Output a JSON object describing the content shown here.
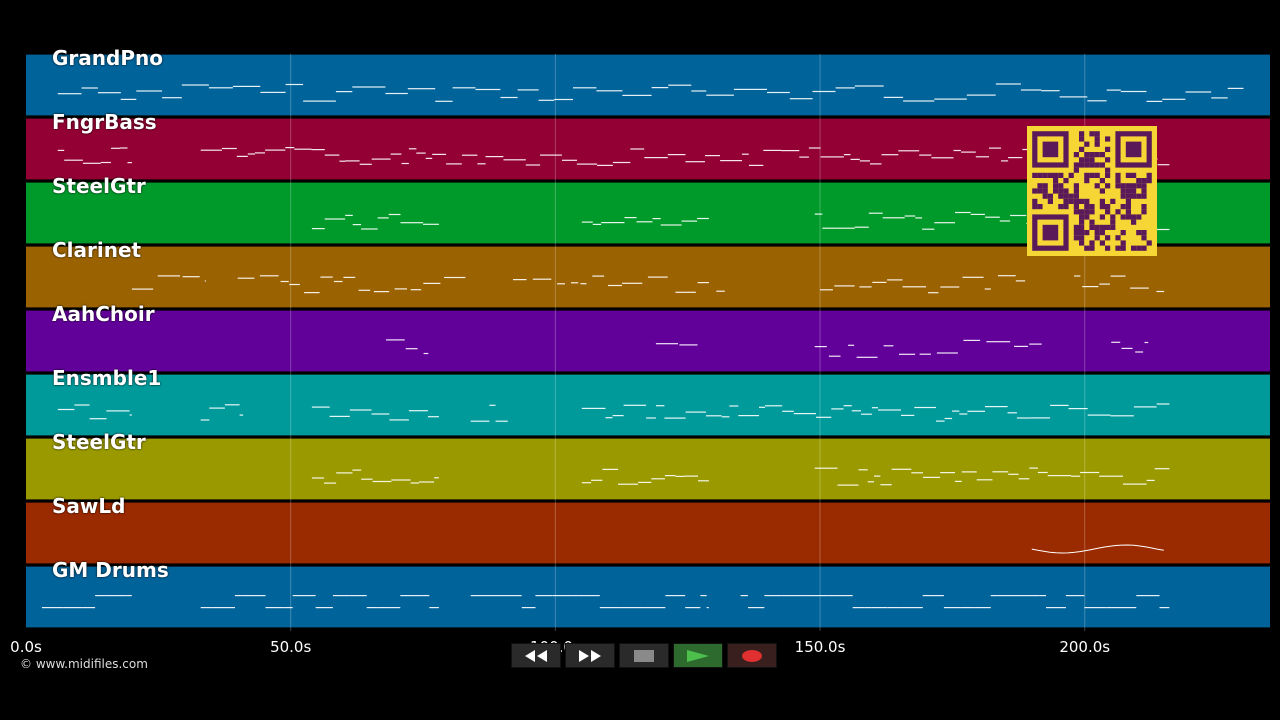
{
  "tracks": [
    {
      "name": "GrandPno",
      "color": "#00639a"
    },
    {
      "name": "FngrBass",
      "color": "#930033"
    },
    {
      "name": "SteelGtr",
      "color": "#009a2a"
    },
    {
      "name": "Clarinet",
      "color": "#9a6200"
    },
    {
      "name": "AahChoir",
      "color": "#62009a"
    },
    {
      "name": "Ensmble1",
      "color": "#009a9a"
    },
    {
      "name": "SteelGtr",
      "color": "#9a9a00"
    },
    {
      "name": "SawLd",
      "color": "#9a2a00"
    },
    {
      "name": "GM Drums",
      "color": "#00639a"
    }
  ],
  "timeline": {
    "ticks": [
      "0.0s",
      "50.0s",
      "100.0s",
      "150.0s",
      "200.0s"
    ],
    "tick_values": [
      0,
      50,
      100,
      150,
      200
    ],
    "max_seconds": 235
  },
  "copyright": "© www.midifiles.com",
  "controls": {
    "rewind_icon": "rewind-icon",
    "fast_forward_icon": "fast-forward-icon",
    "stop_icon": "stop-icon",
    "play_icon": "play-icon",
    "record_icon": "record-icon",
    "play_color": "#4cbf4c",
    "record_color": "#e03030"
  },
  "qr": {
    "background": "#f6d635",
    "foreground": "#5a1a5a"
  }
}
